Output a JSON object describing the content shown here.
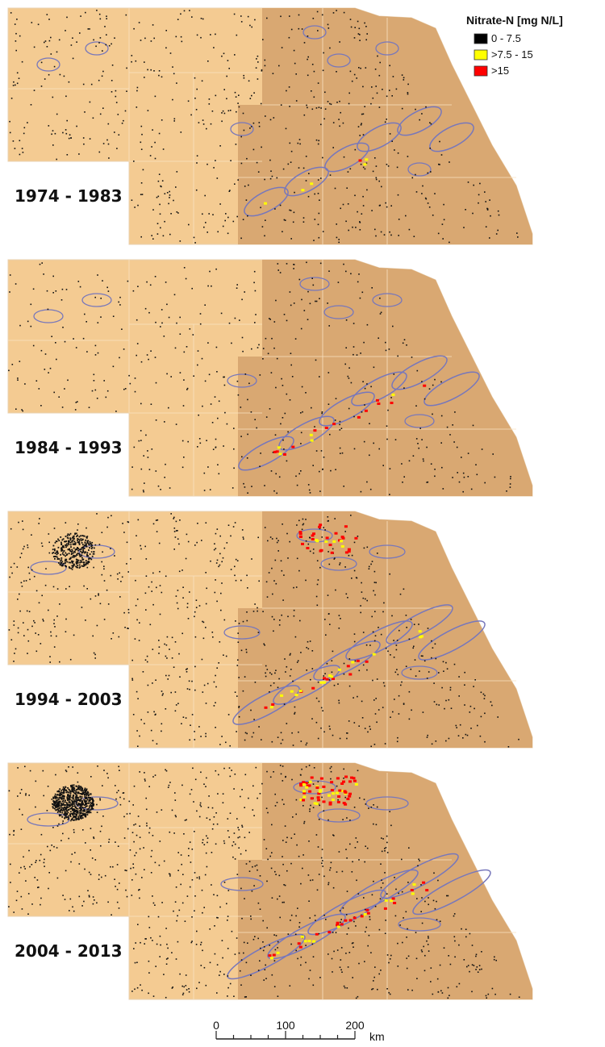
{
  "legend": {
    "title": "Nitrate-N [mg N/L]",
    "items": [
      {
        "label": "0 - 7.5",
        "color": "#000000"
      },
      {
        "label": ">7.5 - 15",
        "color": "#ffff00"
      },
      {
        "label": ">15",
        "color": "#ff0000"
      }
    ]
  },
  "panels": [
    {
      "label": "1974 - 1983"
    },
    {
      "label": "1984 - 1993"
    },
    {
      "label": "1994 - 2003"
    },
    {
      "label": "2004 - 2013"
    }
  ],
  "scale_bar": {
    "labels": [
      "0",
      "100",
      "200"
    ],
    "unit": "km"
  }
}
